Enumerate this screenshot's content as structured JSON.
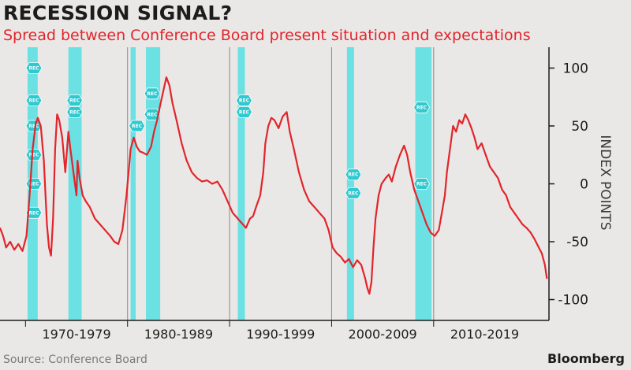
{
  "header": {
    "title": "RECESSION SIGNAL?",
    "subtitle": "Spread between Conference Board present situation and expectations"
  },
  "footer": {
    "source": "Source: Conference Board",
    "brand": "Bloomberg"
  },
  "colors": {
    "line": "#e3242b",
    "recession_band": "#5ee0e3",
    "background": "#e9e8e6",
    "axis": "#1c1c1c"
  },
  "chart_data": {
    "type": "line",
    "title": "RECESSION SIGNAL?",
    "subtitle": "Spread between Conference Board present situation and expectations",
    "ylabel": "INDEX POINTS",
    "ylim": [
      -118,
      118
    ],
    "xlim": [
      1967.2,
      2021.0
    ],
    "y_ticks": [
      100,
      50,
      0,
      -50,
      -100
    ],
    "x_tick_labels": [
      "1970-1979",
      "1980-1989",
      "1990-1999",
      "2000-2009",
      "2010-2019"
    ],
    "x_tick_centers": [
      1974.7,
      1984.7,
      1994.7,
      2004.7,
      2014.7
    ],
    "decade_dividers": [
      1979.7,
      1989.7,
      1999.7,
      2009.7
    ],
    "grid": false,
    "recession_label": "REC",
    "recessions": [
      [
        1969.9,
        1970.9
      ],
      [
        1973.9,
        1975.2
      ],
      [
        1980.0,
        1980.5
      ],
      [
        1981.5,
        1982.9
      ],
      [
        1990.5,
        1991.2
      ],
      [
        2001.2,
        2001.9
      ],
      [
        2007.9,
        2009.5
      ]
    ],
    "series": [
      {
        "values": [
          [
            1967.2,
            -38
          ],
          [
            1967.5,
            -45
          ],
          [
            1967.8,
            -55
          ],
          [
            1968.2,
            -50
          ],
          [
            1968.6,
            -57
          ],
          [
            1969.0,
            -52
          ],
          [
            1969.4,
            -58
          ],
          [
            1969.8,
            -45
          ],
          [
            1970.1,
            -10
          ],
          [
            1970.4,
            30
          ],
          [
            1970.7,
            52
          ],
          [
            1970.9,
            57
          ],
          [
            1971.2,
            50
          ],
          [
            1971.5,
            20
          ],
          [
            1971.8,
            -35
          ],
          [
            1972.0,
            -55
          ],
          [
            1972.2,
            -62
          ],
          [
            1972.4,
            -30
          ],
          [
            1972.6,
            30
          ],
          [
            1972.8,
            60
          ],
          [
            1973.0,
            55
          ],
          [
            1973.3,
            40
          ],
          [
            1973.6,
            10
          ],
          [
            1973.9,
            45
          ],
          [
            1974.1,
            30
          ],
          [
            1974.4,
            10
          ],
          [
            1974.7,
            -10
          ],
          [
            1974.8,
            20
          ],
          [
            1975.0,
            5
          ],
          [
            1975.3,
            -10
          ],
          [
            1975.6,
            -15
          ],
          [
            1976.0,
            -20
          ],
          [
            1976.5,
            -30
          ],
          [
            1977.0,
            -35
          ],
          [
            1977.5,
            -40
          ],
          [
            1978.0,
            -45
          ],
          [
            1978.4,
            -50
          ],
          [
            1978.8,
            -52
          ],
          [
            1979.2,
            -40
          ],
          [
            1979.6,
            -10
          ],
          [
            1980.0,
            30
          ],
          [
            1980.3,
            40
          ],
          [
            1980.6,
            32
          ],
          [
            1980.9,
            28
          ],
          [
            1981.2,
            27
          ],
          [
            1981.6,
            25
          ],
          [
            1982.0,
            32
          ],
          [
            1982.3,
            45
          ],
          [
            1982.6,
            55
          ],
          [
            1982.9,
            68
          ],
          [
            1983.2,
            80
          ],
          [
            1983.5,
            92
          ],
          [
            1983.8,
            85
          ],
          [
            1984.1,
            70
          ],
          [
            1984.5,
            55
          ],
          [
            1985.0,
            35
          ],
          [
            1985.5,
            20
          ],
          [
            1986.0,
            10
          ],
          [
            1986.5,
            5
          ],
          [
            1987.0,
            2
          ],
          [
            1987.5,
            3
          ],
          [
            1988.0,
            0
          ],
          [
            1988.5,
            2
          ],
          [
            1989.0,
            -5
          ],
          [
            1989.5,
            -15
          ],
          [
            1990.0,
            -25
          ],
          [
            1990.5,
            -30
          ],
          [
            1991.0,
            -35
          ],
          [
            1991.3,
            -38
          ],
          [
            1991.7,
            -30
          ],
          [
            1992.0,
            -28
          ],
          [
            1992.3,
            -20
          ],
          [
            1992.7,
            -10
          ],
          [
            1993.0,
            10
          ],
          [
            1993.2,
            35
          ],
          [
            1993.5,
            50
          ],
          [
            1993.8,
            57
          ],
          [
            1994.1,
            55
          ],
          [
            1994.5,
            48
          ],
          [
            1994.9,
            58
          ],
          [
            1995.3,
            62
          ],
          [
            1995.6,
            45
          ],
          [
            1996.0,
            30
          ],
          [
            1996.5,
            10
          ],
          [
            1997.0,
            -5
          ],
          [
            1997.5,
            -15
          ],
          [
            1998.0,
            -20
          ],
          [
            1998.5,
            -25
          ],
          [
            1999.0,
            -30
          ],
          [
            1999.4,
            -40
          ],
          [
            1999.8,
            -55
          ],
          [
            2000.2,
            -60
          ],
          [
            2000.6,
            -63
          ],
          [
            2001.0,
            -68
          ],
          [
            2001.4,
            -65
          ],
          [
            2001.8,
            -72
          ],
          [
            2002.2,
            -66
          ],
          [
            2002.6,
            -70
          ],
          [
            2003.0,
            -82
          ],
          [
            2003.2,
            -90
          ],
          [
            2003.4,
            -95
          ],
          [
            2003.6,
            -85
          ],
          [
            2003.8,
            -55
          ],
          [
            2004.0,
            -30
          ],
          [
            2004.3,
            -10
          ],
          [
            2004.6,
            0
          ],
          [
            2005.0,
            5
          ],
          [
            2005.3,
            8
          ],
          [
            2005.6,
            2
          ],
          [
            2006.0,
            15
          ],
          [
            2006.4,
            25
          ],
          [
            2006.8,
            33
          ],
          [
            2007.1,
            25
          ],
          [
            2007.4,
            10
          ],
          [
            2007.8,
            -5
          ],
          [
            2008.2,
            -15
          ],
          [
            2008.6,
            -25
          ],
          [
            2009.0,
            -35
          ],
          [
            2009.4,
            -42
          ],
          [
            2009.8,
            -45
          ],
          [
            2010.2,
            -40
          ],
          [
            2010.5,
            -25
          ],
          [
            2010.8,
            -10
          ],
          [
            2011.0,
            10
          ],
          [
            2011.3,
            30
          ],
          [
            2011.6,
            50
          ],
          [
            2011.9,
            45
          ],
          [
            2012.2,
            55
          ],
          [
            2012.5,
            52
          ],
          [
            2012.8,
            60
          ],
          [
            2013.1,
            55
          ],
          [
            2013.4,
            48
          ],
          [
            2013.7,
            40
          ],
          [
            2014.0,
            30
          ],
          [
            2014.4,
            35
          ],
          [
            2014.8,
            25
          ],
          [
            2015.2,
            15
          ],
          [
            2015.6,
            10
          ],
          [
            2016.0,
            5
          ],
          [
            2016.4,
            -5
          ],
          [
            2016.8,
            -10
          ],
          [
            2017.2,
            -20
          ],
          [
            2017.6,
            -25
          ],
          [
            2018.0,
            -30
          ],
          [
            2018.4,
            -35
          ],
          [
            2018.8,
            -38
          ],
          [
            2019.2,
            -42
          ],
          [
            2019.6,
            -48
          ],
          [
            2020.0,
            -55
          ],
          [
            2020.3,
            -60
          ],
          [
            2020.6,
            -70
          ],
          [
            2020.8,
            -82
          ]
        ]
      }
    ]
  }
}
